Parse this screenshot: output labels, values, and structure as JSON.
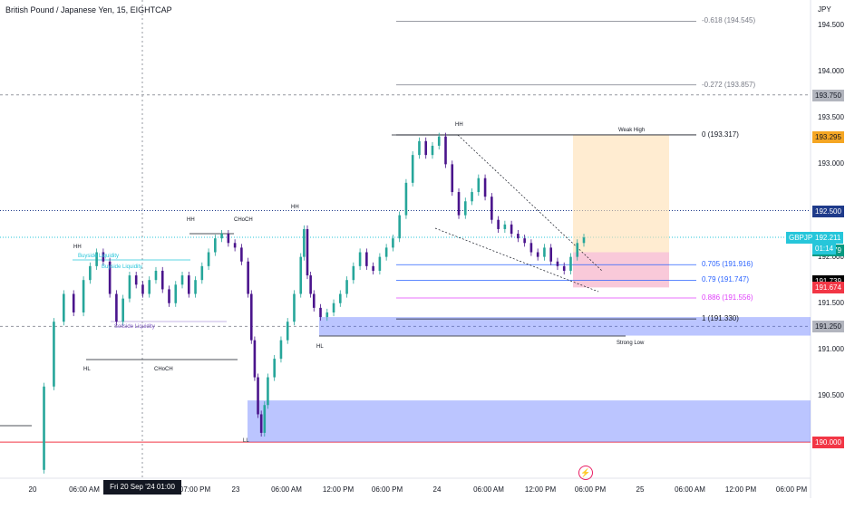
{
  "chart_data": {
    "type": "candlestick",
    "title": "British Pound / Japanese Yen, 15, EIGHTCAP",
    "currency": "JPY",
    "ylim": [
      189.66,
      195.08
    ],
    "x_ticks": [
      "20",
      "06:00 AM",
      "07:00 PM",
      "23",
      "06:00 AM",
      "12:00 PM",
      "06:00 PM",
      "24",
      "06:00 AM",
      "12:00 PM",
      "06:00 PM",
      "25",
      "06:00 AM",
      "12:00 PM",
      "06:00 PM"
    ],
    "crosshair_date": "Fri 20 Sep '24   01:00 PM",
    "y_ticks": [
      194.5,
      194.0,
      193.5,
      193.0,
      192.5,
      192.0,
      191.5,
      191.0,
      190.5
    ],
    "y_tick_labels": [
      "194.500",
      "194.000",
      "193.500",
      "193.000",
      "192.500",
      "192.000",
      "191.500",
      "191.000",
      "190.500"
    ],
    "price_tags": [
      {
        "label": "193.750",
        "value": 193.75,
        "bg": "#b2b5be",
        "fg": "#131722"
      },
      {
        "label": "193.295",
        "value": 193.295,
        "bg": "#f5a623",
        "fg": "#131722"
      },
      {
        "label": "192.500",
        "value": 192.5,
        "bg": "#1e3a8a",
        "fg": "#ffffff"
      },
      {
        "label": "192.079",
        "value": 192.079,
        "bg": "#089981",
        "fg": "#ffffff"
      },
      {
        "label": "191.739",
        "value": 191.739,
        "bg": "#000000",
        "fg": "#ffffff"
      },
      {
        "label": "191.674",
        "value": 191.674,
        "bg": "#f23645",
        "fg": "#ffffff"
      },
      {
        "label": "191.250",
        "value": 191.25,
        "bg": "#b2b5be",
        "fg": "#131722"
      },
      {
        "label": "190.000",
        "value": 190.0,
        "bg": "#f23645",
        "fg": "#ffffff"
      }
    ],
    "symbol_tag": {
      "symbol": "GBPJPY",
      "price": "192.211",
      "countdown": "01:14"
    },
    "fib_levels": [
      {
        "label": "-0.618 (194.545)",
        "value": 194.545,
        "color": "#787b86"
      },
      {
        "label": "-0.272 (193.857)",
        "value": 193.857,
        "color": "#787b86"
      },
      {
        "label": "0 (193.317)",
        "value": 193.317,
        "color": "#131722"
      },
      {
        "label": "0.705 (191.916)",
        "value": 191.916,
        "color": "#2962ff"
      },
      {
        "label": "0.79 (191.747)",
        "value": 191.747,
        "color": "#2962ff"
      },
      {
        "label": "0.886 (191.556)",
        "value": 191.556,
        "color": "#e040fb"
      },
      {
        "label": "1 (191.330)",
        "value": 191.33,
        "color": "#131722"
      }
    ],
    "annotations": {
      "hh": "HH",
      "hl": "HL",
      "choch": "CHoCH",
      "ll": "LL",
      "buyside": "Buyside Liquidity",
      "sellside": "Sellside Liquidity",
      "weak_high": "Weak High",
      "strong_low": "Strong Low"
    },
    "price_path": [
      [
        0,
        189.7
      ],
      [
        4,
        190.6
      ],
      [
        7,
        191.3
      ],
      [
        10,
        191.6
      ],
      [
        13,
        191.4
      ],
      [
        16,
        191.75
      ],
      [
        18,
        191.9
      ],
      [
        20,
        192.05
      ],
      [
        22,
        191.95
      ],
      [
        24,
        191.6
      ],
      [
        26,
        191.3
      ],
      [
        28,
        191.55
      ],
      [
        30,
        191.8
      ],
      [
        32,
        191.7
      ],
      [
        34,
        191.6
      ],
      [
        36,
        191.75
      ],
      [
        38,
        191.85
      ],
      [
        40,
        191.65
      ],
      [
        42,
        191.5
      ],
      [
        44,
        191.7
      ],
      [
        46,
        191.8
      ],
      [
        48,
        191.6
      ],
      [
        50,
        191.75
      ],
      [
        52,
        191.9
      ],
      [
        54,
        192.05
      ],
      [
        56,
        192.2
      ],
      [
        58,
        192.25
      ],
      [
        60,
        192.15
      ],
      [
        62,
        192.1
      ],
      [
        64,
        191.95
      ],
      [
        66,
        191.6
      ],
      [
        67,
        191.1
      ],
      [
        68,
        190.7
      ],
      [
        69,
        190.3
      ],
      [
        70,
        190.1
      ],
      [
        71,
        190.4
      ],
      [
        72,
        190.7
      ],
      [
        74,
        190.9
      ],
      [
        76,
        191.1
      ],
      [
        78,
        191.3
      ],
      [
        80,
        191.6
      ],
      [
        82,
        192.0
      ],
      [
        83,
        192.3
      ],
      [
        84,
        191.8
      ],
      [
        85,
        191.6
      ],
      [
        86,
        191.45
      ],
      [
        88,
        191.35
      ],
      [
        90,
        191.4
      ],
      [
        92,
        191.5
      ],
      [
        94,
        191.6
      ],
      [
        96,
        191.75
      ],
      [
        98,
        191.9
      ],
      [
        100,
        192.05
      ],
      [
        102,
        191.9
      ],
      [
        104,
        191.85
      ],
      [
        106,
        192.0
      ],
      [
        108,
        192.1
      ],
      [
        110,
        192.2
      ],
      [
        112,
        192.45
      ],
      [
        114,
        192.8
      ],
      [
        116,
        193.1
      ],
      [
        118,
        193.25
      ],
      [
        120,
        193.1
      ],
      [
        122,
        193.2
      ],
      [
        124,
        193.3
      ],
      [
        126,
        193.0
      ],
      [
        128,
        192.7
      ],
      [
        130,
        192.45
      ],
      [
        132,
        192.6
      ],
      [
        134,
        192.7
      ],
      [
        136,
        192.85
      ],
      [
        138,
        192.65
      ],
      [
        140,
        192.4
      ],
      [
        142,
        192.3
      ],
      [
        144,
        192.35
      ],
      [
        146,
        192.25
      ],
      [
        148,
        192.2
      ],
      [
        150,
        192.15
      ],
      [
        152,
        192.05
      ],
      [
        154,
        192.0
      ],
      [
        156,
        192.1
      ],
      [
        158,
        191.95
      ],
      [
        160,
        191.9
      ],
      [
        162,
        191.85
      ],
      [
        164,
        192.0
      ],
      [
        166,
        192.15
      ],
      [
        168,
        192.21
      ]
    ]
  }
}
